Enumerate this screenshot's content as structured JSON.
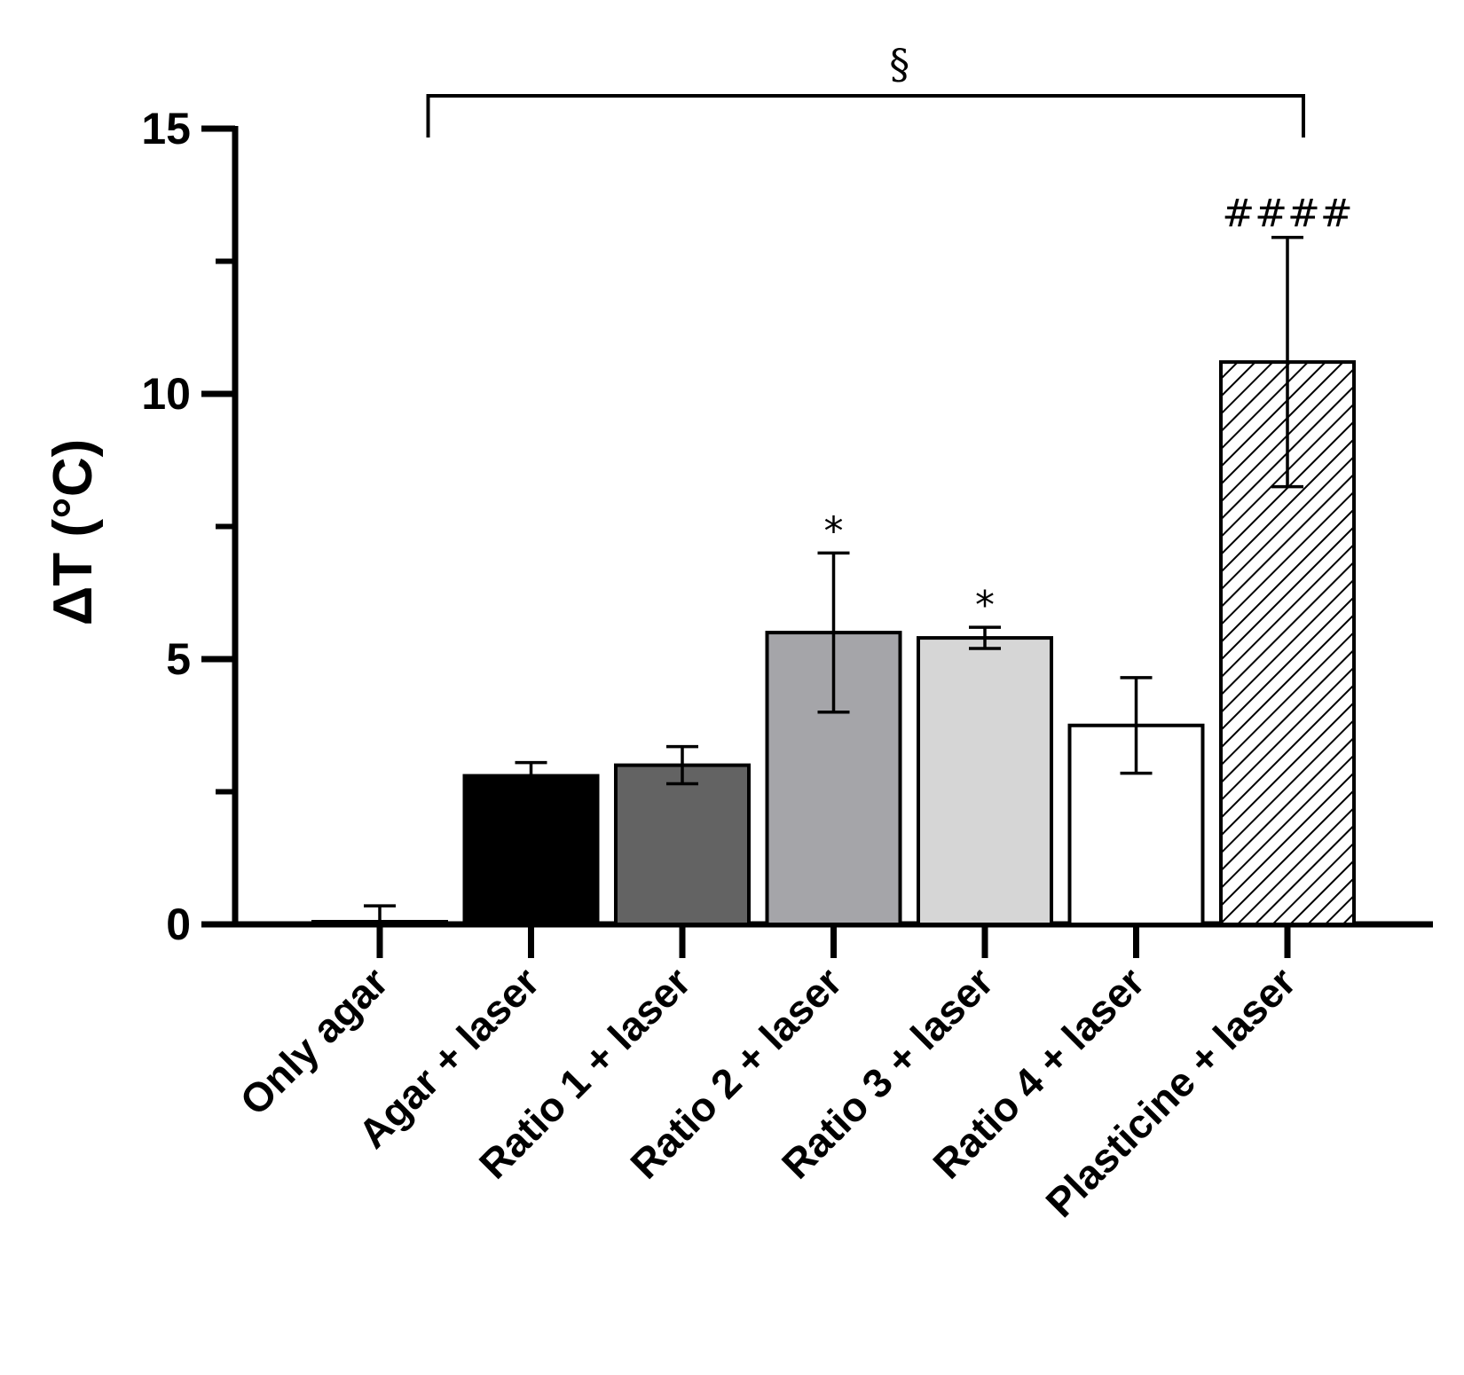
{
  "chart_data": {
    "type": "bar",
    "title": "",
    "xlabel": "",
    "ylabel": "ΔT (°C)",
    "ylim": [
      0,
      15
    ],
    "yticks": [
      0,
      5,
      10,
      15
    ],
    "grid": false,
    "categories": [
      "Only agar",
      "Agar + laser",
      "Ratio 1 + laser",
      "Ratio 2 + laser",
      "Ratio 3 + laser",
      "Ratio 4 + laser",
      "Plasticine + laser"
    ],
    "values": [
      0.05,
      2.8,
      3.0,
      5.5,
      5.4,
      3.75,
      10.6
    ],
    "errors": [
      0.3,
      0.25,
      0.35,
      1.5,
      0.2,
      0.9,
      2.35
    ],
    "fills": [
      "#ffffff",
      "#000000",
      "#636363",
      "#a5a5a9",
      "#d6d6d6",
      "#ffffff",
      "hatch"
    ],
    "significance": [
      "",
      "",
      "",
      "*",
      "*",
      "",
      "####"
    ],
    "bracket": {
      "from": 1,
      "to": 6,
      "label": "§"
    }
  }
}
